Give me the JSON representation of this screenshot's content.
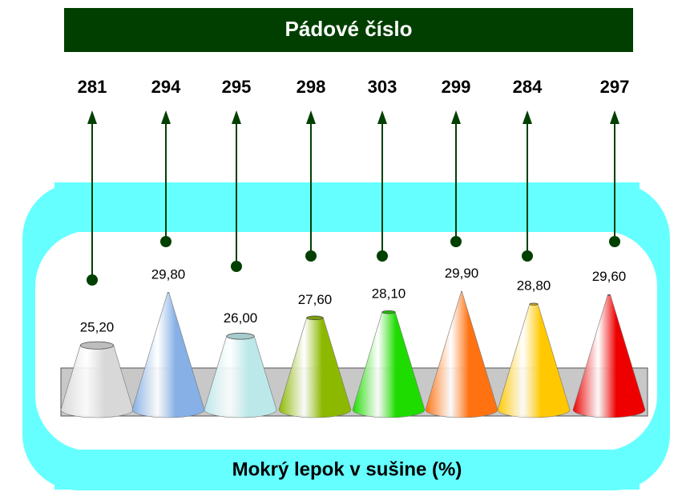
{
  "chart_data": {
    "type": "cone",
    "title": "Pádové číslo",
    "xlabel": "Mokrý lepok v sušine (%)",
    "values": [
      25.2,
      29.8,
      26.0,
      27.6,
      28.1,
      29.9,
      28.8,
      29.6
    ],
    "value_labels": [
      "25,20",
      "29,80",
      "26,00",
      "27,60",
      "28,10",
      "29,90",
      "28,80",
      "29,60"
    ],
    "colors": [
      "#d8d8d8",
      "#86b0e6",
      "#bde8ea",
      "#8cb800",
      "#1edc00",
      "#ff7212",
      "#ffc800",
      "#ee0000"
    ],
    "top_values": [
      281,
      294,
      295,
      298,
      303,
      299,
      284,
      297
    ],
    "ylim": [
      19.6,
      30
    ]
  }
}
